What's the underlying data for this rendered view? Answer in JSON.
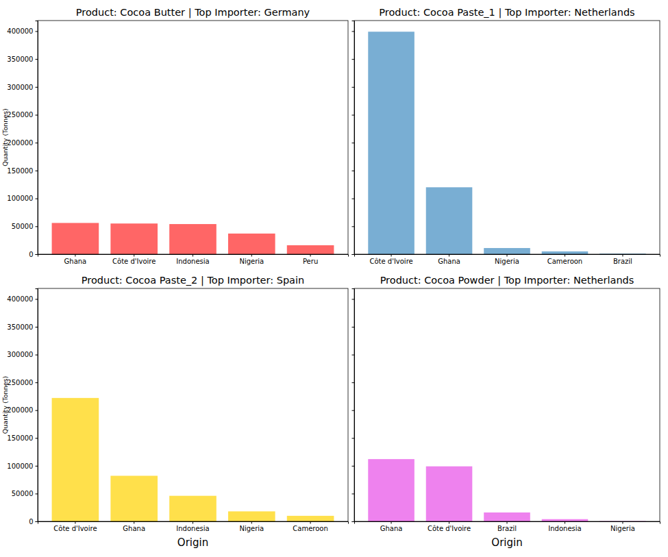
{
  "chart_data": [
    {
      "type": "bar",
      "title": "Product: Cocoa Butter | Top Importer: Germany",
      "categories": [
        "Ghana",
        "Côte d'Ivoire",
        "Indonesia",
        "Nigeria",
        "Peru"
      ],
      "values": [
        56000,
        55000,
        54000,
        37000,
        16000
      ],
      "color": "#ff6666",
      "y_label": "Quantity (Tonnes)",
      "ylim": [
        0,
        419000
      ],
      "yticks": [
        0,
        50000,
        100000,
        150000,
        200000,
        250000,
        300000,
        350000,
        400000
      ]
    },
    {
      "type": "bar",
      "title": "Product: Cocoa Paste_1 | Top Importer: Netherlands",
      "categories": [
        "Côte d'Ivoire",
        "Ghana",
        "Nigeria",
        "Cameroon",
        "Brazil"
      ],
      "values": [
        399000,
        120000,
        11000,
        5000,
        1000
      ],
      "color": "#79aed3",
      "ylim": [
        0,
        419000
      ],
      "yticks": [
        0,
        50000,
        100000,
        150000,
        200000,
        250000,
        300000,
        350000,
        400000
      ],
      "tick_labels": "x"
    },
    {
      "type": "bar",
      "title": "Product: Cocoa Paste_2 | Top Importer: Spain",
      "categories": [
        "Côte d'Ivoire",
        "Ghana",
        "Indonesia",
        "Nigeria",
        "Cameroon"
      ],
      "values": [
        222000,
        82000,
        46000,
        18000,
        10000
      ],
      "color": "#ffe04b",
      "x_label": "Origin",
      "y_label": "Quantity (Tonnes)",
      "ylim": [
        0,
        419000
      ],
      "yticks": [
        0,
        50000,
        100000,
        150000,
        200000,
        250000,
        300000,
        350000,
        400000
      ]
    },
    {
      "type": "bar",
      "title": "Product: Cocoa Powder | Top Importer: Netherlands",
      "categories": [
        "Ghana",
        "Côte d'Ivoire",
        "Brazil",
        "Indonesia",
        "Nigeria"
      ],
      "values": [
        112000,
        99000,
        16000,
        4000,
        500
      ],
      "color": "#ee82ee",
      "x_label": "Origin",
      "ylim": [
        0,
        419000
      ],
      "yticks": [
        0,
        50000,
        100000,
        150000,
        200000,
        250000,
        300000,
        350000,
        400000
      ],
      "tick_labels": "x"
    }
  ]
}
